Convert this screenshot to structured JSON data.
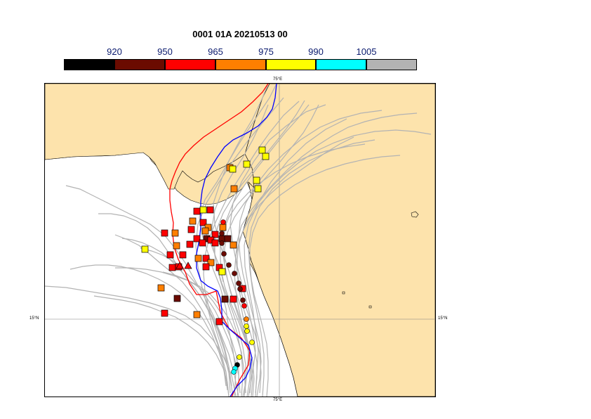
{
  "title": "0001 01A 20210513 00",
  "colorbar": {
    "labels": [
      "920",
      "950",
      "965",
      "975",
      "990",
      "1005"
    ],
    "colors": [
      "#000000",
      "#6b0b00",
      "#ff0000",
      "#ff7f00",
      "#ffff00",
      "#00ffff",
      "#b3b3b3"
    ]
  },
  "map": {
    "land_color": "#fde3ac",
    "sea_color": "#ffffff",
    "grid": {
      "lon_label_top": "75°E",
      "lon_label_bottom": "75°E",
      "lat_label_left": "15°N",
      "lat_label_right": "15°N"
    },
    "tracks": {
      "ensemble_color": "#b3b3b3",
      "red_track_color": "#ff0000",
      "blue_track_color": "#0000ff"
    }
  }
}
